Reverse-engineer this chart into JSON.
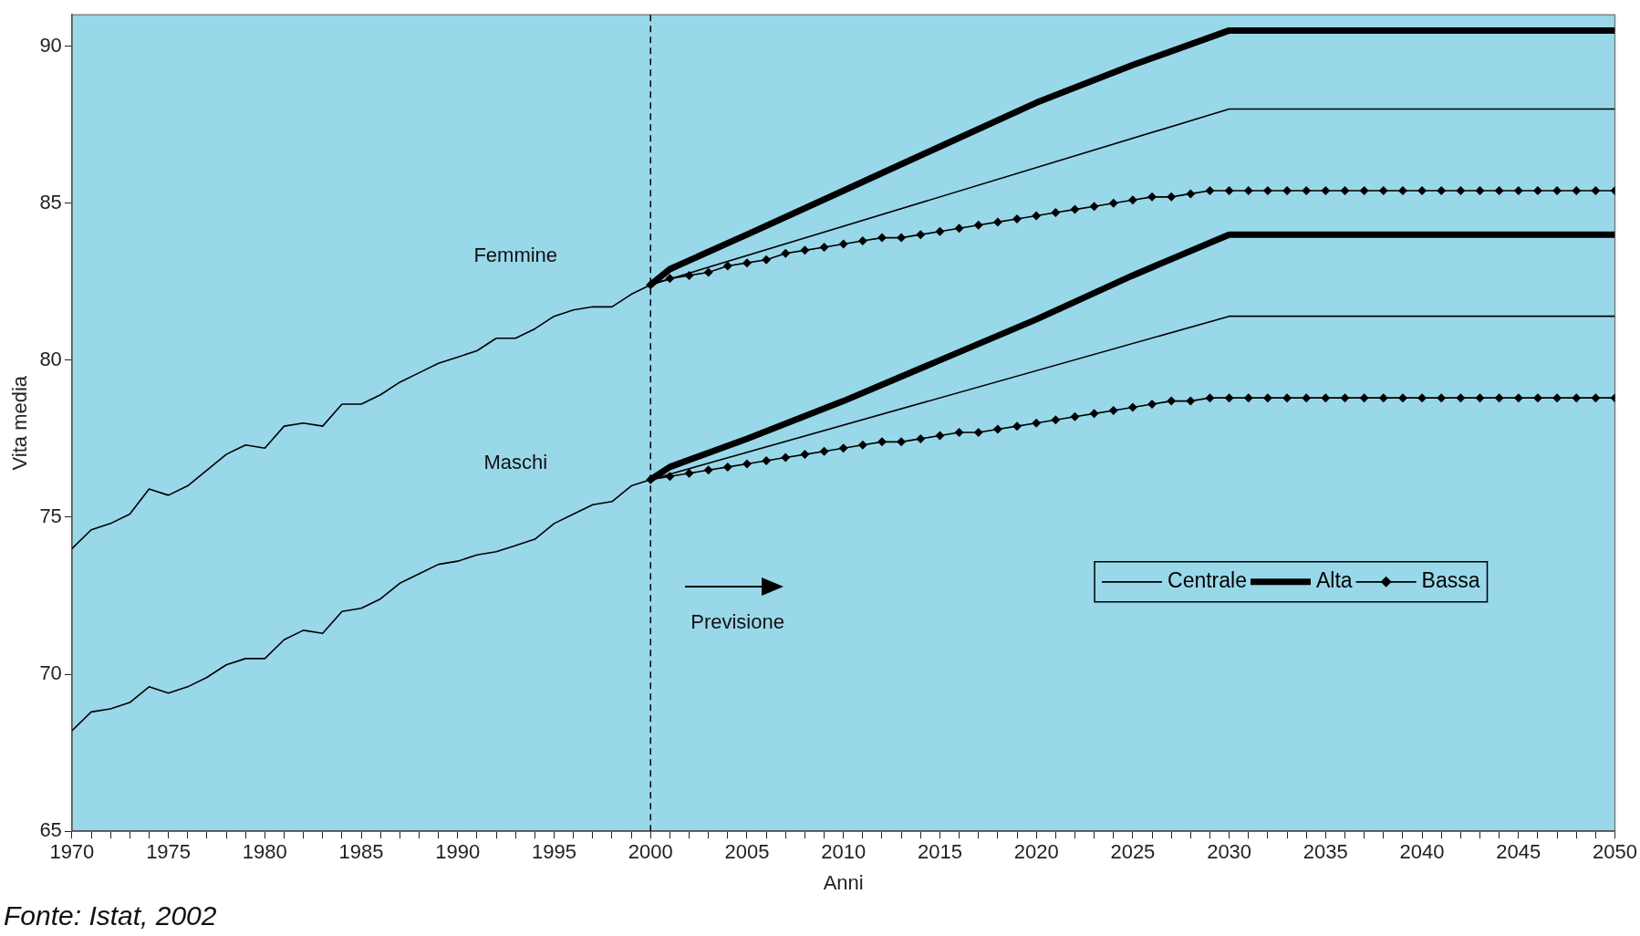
{
  "chart_data": {
    "type": "line",
    "xlabel": "Anni",
    "ylabel": "Vita media",
    "xlim": [
      1970,
      2050
    ],
    "ylim": [
      65,
      91
    ],
    "xticks": [
      1970,
      {
        "value": 1971,
        "label": null
      },
      {
        "value": 1972,
        "label": null
      },
      {
        "value": 1973,
        "label": null
      },
      {
        "value": 1974,
        "label": null
      },
      1975,
      {
        "value": 1976,
        "label": null
      },
      {
        "value": 1977,
        "label": null
      },
      {
        "value": 1978,
        "label": null
      },
      {
        "value": 1979,
        "label": null
      },
      1980,
      {
        "value": 1981,
        "label": null
      },
      {
        "value": 1982,
        "label": null
      },
      {
        "value": 1983,
        "label": null
      },
      {
        "value": 1984,
        "label": null
      },
      1985,
      {
        "value": 1986,
        "label": null
      },
      {
        "value": 1987,
        "label": null
      },
      {
        "value": 1988,
        "label": null
      },
      {
        "value": 1989,
        "label": null
      },
      1990,
      {
        "value": 1991,
        "label": null
      },
      {
        "value": 1992,
        "label": null
      },
      {
        "value": 1993,
        "label": null
      },
      {
        "value": 1994,
        "label": null
      },
      1995,
      {
        "value": 1996,
        "label": null
      },
      {
        "value": 1997,
        "label": null
      },
      {
        "value": 1998,
        "label": null
      },
      {
        "value": 1999,
        "label": null
      },
      2000,
      {
        "value": 2001,
        "label": null
      },
      {
        "value": 2002,
        "label": null
      },
      {
        "value": 2003,
        "label": null
      },
      {
        "value": 2004,
        "label": null
      },
      2005,
      {
        "value": 2006,
        "label": null
      },
      {
        "value": 2007,
        "label": null
      },
      {
        "value": 2008,
        "label": null
      },
      {
        "value": 2009,
        "label": null
      },
      2010,
      {
        "value": 2011,
        "label": null
      },
      {
        "value": 2012,
        "label": null
      },
      {
        "value": 2013,
        "label": null
      },
      {
        "value": 2014,
        "label": null
      },
      2015,
      {
        "value": 2016,
        "label": null
      },
      {
        "value": 2017,
        "label": null
      },
      {
        "value": 2018,
        "label": null
      },
      {
        "value": 2019,
        "label": null
      },
      2020,
      {
        "value": 2021,
        "label": null
      },
      {
        "value": 2022,
        "label": null
      },
      {
        "value": 2023,
        "label": null
      },
      {
        "value": 2024,
        "label": null
      },
      2025,
      {
        "value": 2026,
        "label": null
      },
      {
        "value": 2027,
        "label": null
      },
      {
        "value": 2028,
        "label": null
      },
      {
        "value": 2029,
        "label": null
      },
      2030,
      {
        "value": 2031,
        "label": null
      },
      {
        "value": 2032,
        "label": null
      },
      {
        "value": 2033,
        "label": null
      },
      {
        "value": 2034,
        "label": null
      },
      2035,
      {
        "value": 2036,
        "label": null
      },
      {
        "value": 2037,
        "label": null
      },
      {
        "value": 2038,
        "label": null
      },
      {
        "value": 2039,
        "label": null
      },
      2040,
      {
        "value": 2041,
        "label": null
      },
      {
        "value": 2042,
        "label": null
      },
      {
        "value": 2043,
        "label": null
      },
      {
        "value": 2044,
        "label": null
      },
      2045,
      {
        "value": 2046,
        "label": null
      },
      {
        "value": 2047,
        "label": null
      },
      {
        "value": 2048,
        "label": null
      },
      {
        "value": 2049,
        "label": null
      },
      2050
    ],
    "yticks": [
      65,
      70,
      75,
      80,
      85,
      90
    ],
    "grid": false,
    "legend": "bottom right",
    "marker": "none",
    "line_style": "solid",
    "ref_lines": [
      {
        "axis": "x",
        "value": 2000,
        "label": null,
        "color": "#000000",
        "line_style": "dashed"
      }
    ],
    "annotations": [
      "Femmine",
      "Maschi",
      "Previsione",
      "Fonte: Istat, 2002"
    ],
    "series": [
      {
        "color": "#000000",
        "x": [
          1970,
          1971,
          1972,
          1973,
          1974,
          1975,
          1976,
          1977,
          1978,
          1979,
          1980,
          1981,
          1982,
          1983,
          1984,
          1985,
          1986,
          1987,
          1988,
          1989,
          1990,
          1991,
          1992,
          1993,
          1994,
          1995,
          1996,
          1997,
          1998,
          1999,
          2000
        ],
        "values": [
          74.0,
          74.6,
          74.8,
          75.1,
          75.9,
          75.7,
          76.0,
          76.5,
          77.0,
          77.3,
          77.2,
          77.9,
          78.0,
          77.9,
          78.6,
          78.6,
          78.9,
          79.3,
          79.6,
          79.9,
          80.1,
          80.3,
          80.7,
          80.7,
          81.0,
          81.4,
          81.6,
          81.7,
          81.7,
          82.1,
          82.4
        ]
      },
      {
        "color": "#000000",
        "x": [
          1970,
          1971,
          1972,
          1973,
          1974,
          1975,
          1976,
          1977,
          1978,
          1979,
          1980,
          1981,
          1982,
          1983,
          1984,
          1985,
          1986,
          1987,
          1988,
          1989,
          1990,
          1991,
          1992,
          1993,
          1994,
          1995,
          1996,
          1997,
          1998,
          1999,
          2000
        ],
        "values": [
          68.2,
          68.8,
          68.9,
          69.1,
          69.6,
          69.4,
          69.6,
          69.9,
          70.3,
          70.5,
          70.5,
          71.1,
          71.4,
          71.3,
          72.0,
          72.1,
          72.4,
          72.9,
          73.2,
          73.5,
          73.6,
          73.8,
          73.9,
          74.1,
          74.3,
          74.8,
          75.1,
          75.4,
          75.5,
          76.0,
          76.2
        ]
      },
      {
        "name": "Centrale",
        "color": "#000000",
        "x": [
          2000,
          2030,
          2050
        ],
        "values": [
          82.4,
          88.0,
          88.0
        ]
      },
      {
        "name": "Alta",
        "color": "#000000",
        "x": [
          2000,
          2001,
          2005,
          2010,
          2015,
          2020,
          2025,
          2030,
          2050
        ],
        "values": [
          82.4,
          82.9,
          84.0,
          85.4,
          86.8,
          88.2,
          89.4,
          90.5,
          90.5
        ]
      },
      {
        "name": "Bassa",
        "color": "#000000",
        "marker": "diamond",
        "x": [
          2000,
          2001,
          2002,
          2003,
          2004,
          2005,
          2006,
          2007,
          2008,
          2009,
          2010,
          2011,
          2012,
          2013,
          2014,
          2015,
          2016,
          2017,
          2018,
          2019,
          2020,
          2021,
          2022,
          2023,
          2024,
          2025,
          2026,
          2027,
          2028,
          2029,
          2030,
          2031,
          2032,
          2033,
          2034,
          2035,
          2036,
          2037,
          2038,
          2039,
          2040,
          2041,
          2042,
          2043,
          2044,
          2045,
          2046,
          2047,
          2048,
          2049,
          2050
        ],
        "values": [
          82.4,
          82.6,
          82.7,
          82.8,
          83.0,
          83.1,
          83.2,
          83.4,
          83.5,
          83.6,
          83.7,
          83.8,
          83.9,
          83.9,
          84.0,
          84.1,
          84.2,
          84.3,
          84.4,
          84.5,
          84.6,
          84.7,
          84.8,
          84.9,
          85.0,
          85.1,
          85.2,
          85.2,
          85.3,
          85.4,
          85.4,
          85.4,
          85.4,
          85.4,
          85.4,
          85.4,
          85.4,
          85.4,
          85.4,
          85.4,
          85.4,
          85.4,
          85.4,
          85.4,
          85.4,
          85.4,
          85.4,
          85.4,
          85.4,
          85.4,
          85.4
        ]
      },
      {
        "color": "#000000",
        "x": [
          2000,
          2030,
          2050
        ],
        "values": [
          76.2,
          81.4,
          81.4
        ]
      },
      {
        "color": "#000000",
        "x": [
          2000,
          2001,
          2005,
          2010,
          2015,
          2020,
          2025,
          2030,
          2050
        ],
        "values": [
          76.2,
          76.6,
          77.5,
          78.7,
          80.0,
          81.3,
          82.7,
          84.0,
          84.0
        ]
      },
      {
        "color": "#000000",
        "marker": "diamond",
        "x": [
          2000,
          2001,
          2002,
          2003,
          2004,
          2005,
          2006,
          2007,
          2008,
          2009,
          2010,
          2011,
          2012,
          2013,
          2014,
          2015,
          2016,
          2017,
          2018,
          2019,
          2020,
          2021,
          2022,
          2023,
          2024,
          2025,
          2026,
          2027,
          2028,
          2029,
          2030,
          2031,
          2032,
          2033,
          2034,
          2035,
          2036,
          2037,
          2038,
          2039,
          2040,
          2041,
          2042,
          2043,
          2044,
          2045,
          2046,
          2047,
          2048,
          2049,
          2050
        ],
        "values": [
          76.2,
          76.3,
          76.4,
          76.5,
          76.6,
          76.7,
          76.8,
          76.9,
          77.0,
          77.1,
          77.2,
          77.3,
          77.4,
          77.4,
          77.5,
          77.6,
          77.7,
          77.7,
          77.8,
          77.9,
          78.0,
          78.1,
          78.2,
          78.3,
          78.4,
          78.5,
          78.6,
          78.7,
          78.7,
          78.8,
          78.8,
          78.8,
          78.8,
          78.8,
          78.8,
          78.8,
          78.8,
          78.8,
          78.8,
          78.8,
          78.8,
          78.8,
          78.8,
          78.8,
          78.8,
          78.8,
          78.8,
          78.8,
          78.8,
          78.8,
          78.8
        ]
      }
    ]
  }
}
